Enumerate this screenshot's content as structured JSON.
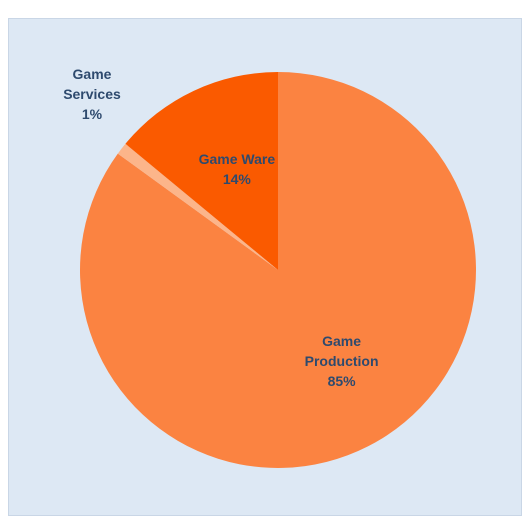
{
  "chart_data": {
    "type": "pie",
    "slices": [
      {
        "name": "Game Production",
        "value": 85,
        "label_lines": [
          "Game",
          "Production",
          "85%"
        ],
        "color": "#fb8341"
      },
      {
        "name": "Game Services",
        "value": 1,
        "label_lines": [
          "Game",
          "Services",
          "1%"
        ],
        "color": "#fcb58a"
      },
      {
        "name": "Game Ware",
        "value": 14,
        "label_lines": [
          "Game Ware",
          "14%"
        ],
        "color": "#fa5a00"
      }
    ],
    "start_angle_deg": 0,
    "direction": "clockwise",
    "legend": "none",
    "background": "#dde8f4",
    "label_color": "#2e4a6e"
  }
}
